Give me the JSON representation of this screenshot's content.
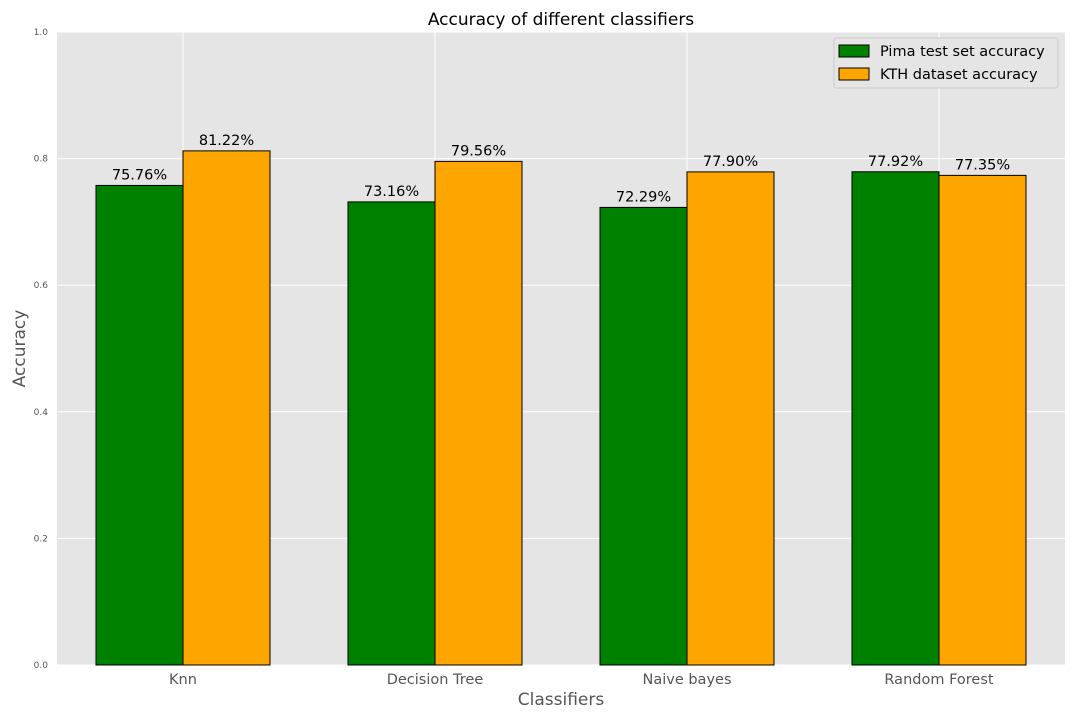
{
  "chart_data": {
    "type": "bar",
    "title": "Accuracy of different classifiers",
    "xlabel": "Classifiers",
    "ylabel": "Accuracy",
    "ylim": [
      0,
      1.0
    ],
    "yticks": [
      "0.0",
      "0.2",
      "0.4",
      "0.6",
      "0.8",
      "1.0"
    ],
    "ytick_values": [
      0,
      0.2,
      0.4,
      0.6,
      0.8,
      1.0
    ],
    "categories": [
      "Knn",
      "Decision Tree",
      "Naive bayes",
      "Random Forest"
    ],
    "series": [
      {
        "name": "Pima test set accuracy",
        "color": "#008000",
        "values": [
          0.7576,
          0.7316,
          0.7229,
          0.7792
        ],
        "labels": [
          "75.76%",
          "73.16%",
          "72.29%",
          "77.92%"
        ]
      },
      {
        "name": "KTH dataset accuracy",
        "color": "#FFA500",
        "values": [
          0.8122,
          0.7956,
          0.779,
          0.7735
        ],
        "labels": [
          "81.22%",
          "79.56%",
          "77.90%",
          "77.35%"
        ]
      }
    ],
    "grid": true,
    "legend_position": "top-right",
    "background": "#E5E5E5"
  }
}
